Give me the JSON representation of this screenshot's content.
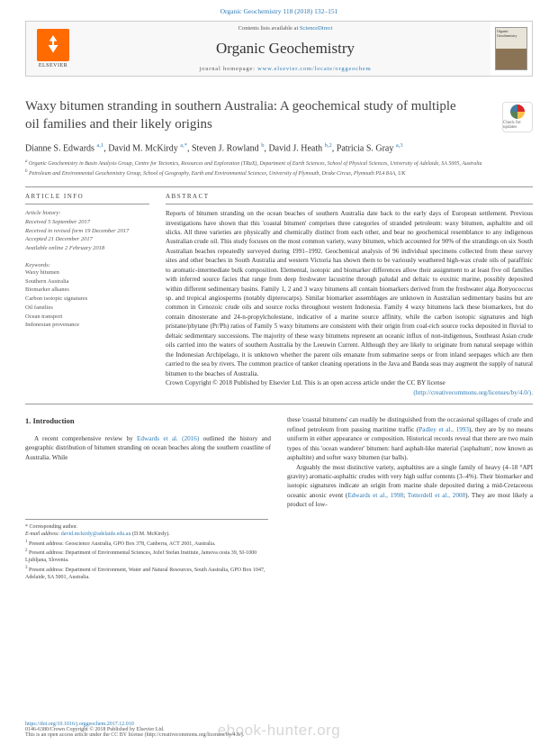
{
  "header": {
    "citation": "Organic Geochemistry 118 (2018) 132–151",
    "contents_prefix": "Contents lists available at ",
    "contents_link": "ScienceDirect",
    "journal_name": "Organic Geochemistry",
    "homepage_prefix": "journal homepage: ",
    "homepage_url": "www.elsevier.com/locate/orggeochem",
    "publisher": "ELSEVIER",
    "cover_label": "Organic Geochemistry"
  },
  "title": "Waxy bitumen stranding in southern Australia: A geochemical study of multiple oil families and their likely origins",
  "check_updates": "Check for updates",
  "authors_html": "Dianne S. Edwards <sup>a,1</sup>, David M. McKirdy <sup>a,*</sup>, Steven J. Rowland <sup>b</sup>, David J. Heath <sup>b,2</sup>, Patricia S. Gray <sup>a,3</sup>",
  "affiliations": {
    "a": "Organic Geochemistry in Basin Analysis Group, Centre for Tectonics, Resources and Exploration (TRaX), Department of Earth Sciences, School of Physical Sciences, University of Adelaide, SA 5005, Australia",
    "b": "Petroleum and Environmental Geochemistry Group, School of Geography, Earth and Environmental Sciences, University of Plymouth, Drake Circus, Plymouth PL4 8AA, UK"
  },
  "article_info": {
    "header": "ARTICLE INFO",
    "history_label": "Article history:",
    "received": "Received 5 September 2017",
    "revised": "Received in revised form 19 December 2017",
    "accepted": "Accepted 21 December 2017",
    "online": "Available online 2 February 2018",
    "keywords_label": "Keywords:",
    "keywords": [
      "Waxy bitumen",
      "Southern Australia",
      "Biomarker alkanes",
      "Carbon isotopic signatures",
      "Oil families",
      "Ocean transport",
      "Indonesian provenance"
    ]
  },
  "abstract": {
    "header": "ABSTRACT",
    "body": "Reports of bitumen stranding on the ocean beaches of southern Australia date back to the early days of European settlement. Previous investigations have shown that this 'coastal bitumen' comprises three categories of stranded petroleum: waxy bitumen, asphaltite and oil slicks. All three varieties are physically and chemically distinct from each other, and bear no geochemical resemblance to any indigenous Australian crude oil. This study focuses on the most common variety, waxy bitumen, which accounted for 90% of the strandings on six South Australian beaches repeatedly surveyed during 1991–1992. Geochemical analysis of 96 individual specimens collected from these survey sites and other beaches in South Australia and western Victoria has shown them to be variously weathered high-wax crude oils of paraffinic to aromatic-intermediate bulk composition. Elemental, isotopic and biomarker differences allow their assignment to at least five oil families with inferred source facies that range from deep freshwater lacustrine through paludal and deltaic to euxinic marine, possibly deposited within different sedimentary basins. Family 1, 2 and 3 waxy bitumens all contain biomarkers derived from the freshwater alga Botryococcus sp. and tropical angiosperms (notably dipterocarps). Similar biomarker assemblages are unknown in Australian sedimentary basins but are common in Cenozoic crude oils and source rocks throughout western Indonesia. Family 4 waxy bitumens lack these biomarkers, but do contain dinosterane and 24-n-propylcholestane, indicative of a marine source affinity, while the carbon isotopic signatures and high pristane/phytane (Pr/Ph) ratios of Family 5 waxy bitumens are consistent with their origin from coal-rich source rocks deposited in fluvial to deltaic sedimentary successions. The majority of these waxy bitumens represent an oceanic influx of non-indigenous, Southeast Asian crude oils carried into the waters of southern Australia by the Leeuwin Current. Although they are likely to originate from natural seepage within the Indonesian Archipelago, it is unknown whether the parent oils emanate from submarine seeps or from inland seepages which are then carried to the sea by rivers. The common practice of tanker cleaning operations in the Java and Banda seas may augment the supply of natural bitumen to the beaches of Australia.",
    "copyright": "Crown Copyright © 2018 Published by Elsevier Ltd. This is an open access article under the CC BY license",
    "license_url": "(http://creativecommons.org/licenses/by/4.0/)."
  },
  "intro": {
    "heading": "1. Introduction",
    "left_para": "A recent comprehensive review by Edwards et al. (2016) outlined the history and geographic distribution of bitumen stranding on ocean beaches along the southern coastline of Australia. While",
    "right_para1": "these 'coastal bitumens' can readily be distinguished from the occasional spillages of crude and refined petroleum from passing maritime traffic (Padley et al., 1993), they are by no means uniform in either appearance or composition. Historical records reveal that there are two main types of this 'ocean wanderer' bitumen: hard asphalt-like material ('asphaltum', now known as asphaltite) and softer waxy bitumen (tar balls).",
    "right_para2": "Arguably the most distinctive variety, asphaltites are a single family of heavy (4–18 °API gravity) aromatic-asphaltic crudes with very high sulfur contents (3–4%). Their biomarker and isotopic signatures indicate an origin from marine shale deposited during a mid-Cretaceous oceanic anoxic event (Edwards et al., 1998; Totterdell et al., 2008). They are most likely a product of low-"
  },
  "footnotes": {
    "corresponding": "* Corresponding author.",
    "email_label": "E-mail address: ",
    "email": "david.mckirdy@adelaide.edu.au",
    "email_suffix": " (D.M. McKirdy).",
    "fn1": "Present address: Geoscience Australia, GPO Box 378, Canberra, ACT 2601, Australia.",
    "fn2": "Present address: Department of Environmental Sciences, Jožef Stefan Institute, Jamova cesta 39, SI-1000 Ljubljana, Slovenia.",
    "fn3": "Present address: Department of Environment, Water and Natural Resources, South Australia, GPO Box 1047, Adelaide, SA 5001, Australia."
  },
  "footer": {
    "doi": "https://doi.org/10.1016/j.orggeochem.2017.12.010",
    "copyright_line": "0146-6380/Crown Copyright © 2018 Published by Elsevier Ltd.",
    "license_line": "This is an open access article under the CC BY license (http://creativecommons.org/licenses/by/4.0/).",
    "watermark": "ebook-hunter.org"
  }
}
